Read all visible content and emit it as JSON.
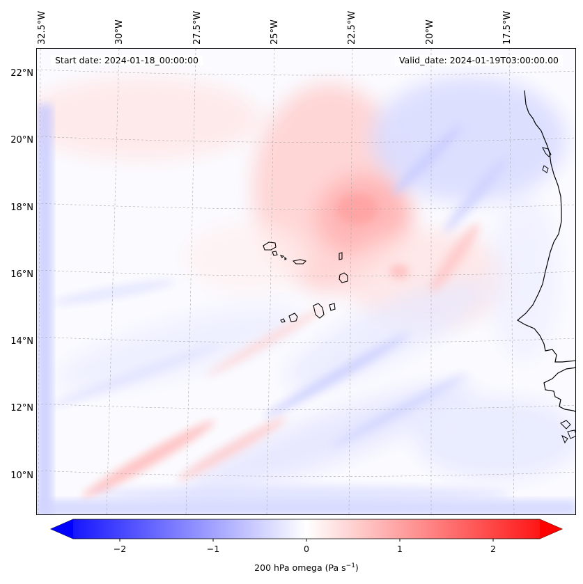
{
  "map": {
    "start_label": "Start date: 2024-01-18_00:00:00",
    "valid_label": "Valid_date: 2024-01-19T03:00:00.00",
    "lon_labels": [
      "32.5°W",
      "30°W",
      "27.5°W",
      "25°W",
      "22.5°W",
      "20°W",
      "17.5°W"
    ],
    "lat_labels": [
      "22°N",
      "20°N",
      "18°N",
      "16°N",
      "14°N",
      "12°N",
      "10°N"
    ],
    "variable": "200 hPa omega",
    "units": "Pa s",
    "units_exponent": "−1"
  },
  "colorbar": {
    "tick_labels": [
      "−2",
      "−1",
      "0",
      "1",
      "2"
    ],
    "min": -2.6,
    "max": 2.6,
    "ticks": [
      -2,
      -1,
      0,
      1,
      2
    ],
    "low_color": "#0000ff",
    "mid_color": "#ffffff",
    "high_color": "#ff0000"
  },
  "colors": {
    "positive": "#ff0000",
    "negative": "#0000ff",
    "coastline": "#000000"
  }
}
